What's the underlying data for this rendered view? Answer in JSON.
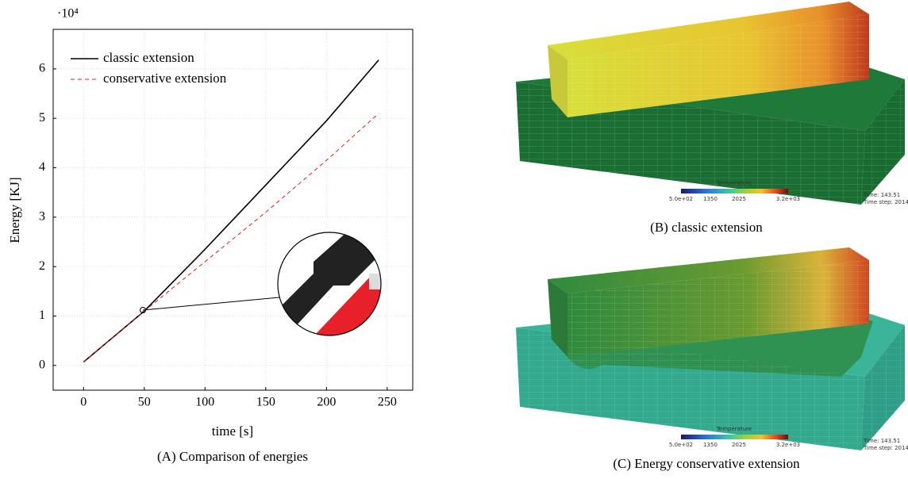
{
  "chart_data": {
    "type": "line",
    "exponent_label": "·10⁴",
    "xlabel": "time [s]",
    "ylabel": "Energy [KJ]",
    "x": [
      0,
      50,
      100,
      150,
      200,
      243
    ],
    "series": [
      {
        "name": "classic extension",
        "color": "#000000",
        "dash": "solid",
        "values": [
          0.07,
          1.1,
          2.35,
          3.65,
          4.95,
          6.18
        ]
      },
      {
        "name": "conservative extension",
        "color": "#e41a1c",
        "dash": "dashed",
        "values": [
          0.07,
          1.1,
          2.1,
          3.1,
          4.15,
          5.1
        ]
      }
    ],
    "xlim": [
      -25,
      271
    ],
    "ylim": [
      -0.5,
      6.8
    ],
    "xticks": [
      0,
      50,
      100,
      150,
      200,
      250
    ],
    "yticks": [
      0,
      1,
      2,
      3,
      4,
      5,
      6
    ],
    "grid": true,
    "legend": "upper-left"
  },
  "captions": [
    "(A) Comparison of energies",
    "(B) classic extension",
    "(C) Energy conservative extension"
  ],
  "renders": [
    {
      "colorbar_title": "Temperature",
      "colorbar_labels": [
        "5.0e+02",
        "1350",
        "2025",
        "3.2e+03"
      ],
      "time": "Time: 143.51",
      "time_step": "Time step: 2014"
    },
    {
      "colorbar_title": "Temperature",
      "colorbar_labels": [
        "5.0e+02",
        "1350",
        "2025",
        "3.2e+03"
      ],
      "time": "Time: 143.51",
      "time_step": "Time step: 2014"
    }
  ]
}
